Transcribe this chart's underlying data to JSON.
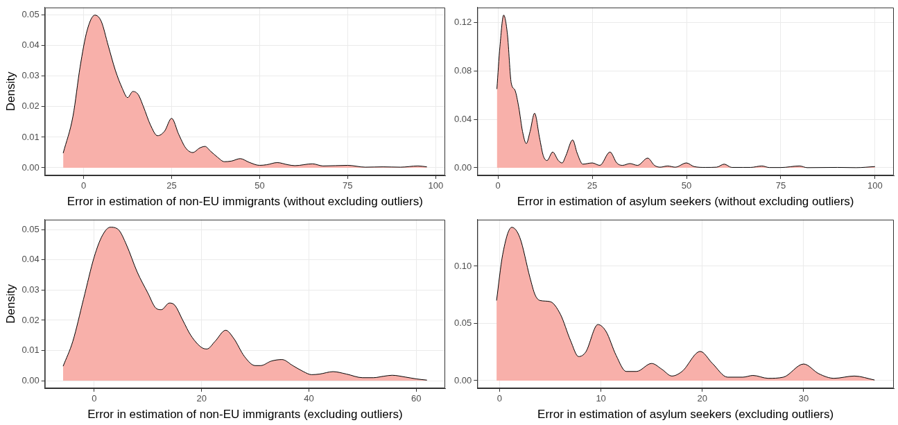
{
  "chart_data": [
    {
      "type": "area",
      "xlabel": "Error in estimation of non-EU immigrants (without excluding outliers)",
      "ylabel": "Density",
      "grid": true,
      "xlim": [
        -11,
        102.7
      ],
      "ylim": [
        -0.0025,
        0.0525
      ],
      "xticks": [
        0,
        25,
        50,
        75,
        100
      ],
      "yticks": [
        {
          "value": 0,
          "label": "0.00"
        },
        {
          "value": 0.01,
          "label": "0.01"
        },
        {
          "value": 0.02,
          "label": "0.02"
        },
        {
          "value": 0.03,
          "label": "0.03"
        },
        {
          "value": 0.04,
          "label": "0.04"
        },
        {
          "value": 0.05,
          "label": "0.05"
        }
      ],
      "x": [
        -5.8,
        -3,
        -1,
        1,
        3.2,
        5,
        7,
        9,
        11,
        12.5,
        14,
        15.5,
        17,
        19,
        21,
        23,
        25,
        27,
        29,
        31,
        33,
        34.5,
        36,
        38,
        40,
        42,
        44.5,
        47,
        50,
        52,
        55,
        58,
        60,
        65,
        68,
        75,
        80,
        85,
        90,
        95,
        97.5
      ],
      "series": [
        {
          "color": "#f8b0aa",
          "values": [
            0.0048,
            0.017,
            0.033,
            0.045,
            0.05,
            0.048,
            0.04,
            0.032,
            0.026,
            0.023,
            0.025,
            0.024,
            0.02,
            0.014,
            0.0105,
            0.012,
            0.0162,
            0.011,
            0.0065,
            0.005,
            0.0065,
            0.007,
            0.0055,
            0.0035,
            0.002,
            0.0022,
            0.003,
            0.0018,
            0.0008,
            0.001,
            0.0017,
            0.001,
            0.0007,
            0.0013,
            0.0006,
            0.0008,
            0.0002,
            0.0003,
            0.0002,
            0.0006,
            0.0003
          ]
        }
      ]
    },
    {
      "type": "area",
      "xlabel": "Error in estimation of asylum seekers (without excluding outliers)",
      "grid": true,
      "xlim": [
        -5.5,
        105
      ],
      "ylim": [
        -0.0063,
        0.1323
      ],
      "xticks": [
        0,
        25,
        50,
        75,
        100
      ],
      "yticks": [
        {
          "value": 0,
          "label": "0.00"
        },
        {
          "value": 0.04,
          "label": "0.04"
        },
        {
          "value": 0.08,
          "label": "0.08"
        },
        {
          "value": 0.12,
          "label": "0.12"
        }
      ],
      "x": [
        -0.3,
        0.5,
        1.5,
        2.5,
        3.5,
        4.5,
        5.5,
        6.5,
        7.5,
        8.5,
        9.7,
        11,
        12,
        13,
        14.5,
        16,
        17,
        18,
        19.8,
        21,
        22.5,
        25,
        27,
        29.7,
        31.5,
        33,
        35,
        37,
        39.7,
        41.5,
        43,
        45,
        47,
        50,
        52,
        55,
        58,
        60,
        62,
        65,
        67,
        70,
        72,
        75,
        80,
        82,
        90,
        95,
        100
      ],
      "series": [
        {
          "color": "#f8b0aa",
          "values": [
            0.065,
            0.1,
            0.126,
            0.11,
            0.07,
            0.064,
            0.05,
            0.03,
            0.02,
            0.03,
            0.045,
            0.025,
            0.01,
            0.006,
            0.013,
            0.006,
            0.004,
            0.01,
            0.023,
            0.012,
            0.003,
            0.004,
            0.002,
            0.013,
            0.004,
            0.002,
            0.0035,
            0.002,
            0.008,
            0.002,
            0.0005,
            0.0015,
            0.0005,
            0.004,
            0.001,
            0.0003,
            0.0005,
            0.003,
            0.0003,
            0.0003,
            0.0003,
            0.0015,
            0.0002,
            0.0002,
            0.0015,
            0.0001,
            0.0003,
            0.0001,
            0.001
          ]
        }
      ]
    },
    {
      "type": "area",
      "xlabel": "Error in estimation of non-EU immigrants (excluding outliers)",
      "ylabel": "Density",
      "grid": true,
      "xlim": [
        -9.2,
        65.4
      ],
      "ylim": [
        -0.0025,
        0.0533
      ],
      "xticks": [
        0,
        20,
        40,
        60
      ],
      "yticks": [
        {
          "value": 0,
          "label": "0.00"
        },
        {
          "value": 0.01,
          "label": "0.01"
        },
        {
          "value": 0.02,
          "label": "0.02"
        },
        {
          "value": 0.03,
          "label": "0.03"
        },
        {
          "value": 0.04,
          "label": "0.04"
        },
        {
          "value": 0.05,
          "label": "0.05"
        }
      ],
      "x": [
        -5.8,
        -4,
        -2,
        0,
        1.5,
        3,
        4.5,
        6,
        8,
        10,
        11.5,
        12.5,
        14,
        15,
        16.5,
        18,
        20,
        21,
        22.5,
        24.5,
        26,
        28,
        30,
        31,
        33,
        35,
        37,
        39,
        40.5,
        42,
        44.5,
        47,
        50,
        52,
        54,
        55.5,
        58,
        60,
        62
      ],
      "series": [
        {
          "color": "#f8b0aa",
          "values": [
            0.0048,
            0.013,
            0.027,
            0.041,
            0.048,
            0.0508,
            0.05,
            0.045,
            0.036,
            0.029,
            0.024,
            0.0235,
            0.0257,
            0.025,
            0.02,
            0.015,
            0.011,
            0.0105,
            0.013,
            0.0167,
            0.014,
            0.008,
            0.005,
            0.005,
            0.0065,
            0.007,
            0.005,
            0.003,
            0.002,
            0.0022,
            0.003,
            0.0022,
            0.001,
            0.001,
            0.0015,
            0.0018,
            0.0012,
            0.0006,
            0.0002
          ]
        }
      ]
    },
    {
      "type": "area",
      "xlabel": "Error in estimation of asylum seekers (excluding outliers)",
      "grid": true,
      "xlim": [
        -2.2,
        38.9
      ],
      "ylim": [
        -0.0067,
        0.1407
      ],
      "xticks": [
        0,
        10,
        20,
        30
      ],
      "yticks": [
        {
          "value": 0,
          "label": "0.00"
        },
        {
          "value": 0.05,
          "label": "0.05"
        },
        {
          "value": 0.1,
          "label": "0.10"
        }
      ],
      "x": [
        -0.3,
        0.3,
        1.2,
        2,
        3,
        3.5,
        4,
        5,
        6,
        7,
        7.8,
        8.5,
        9.7,
        10.5,
        11.5,
        12.5,
        13.5,
        15,
        16,
        17,
        18,
        19.8,
        21,
        22.5,
        24,
        25,
        26.5,
        28,
        30,
        31.5,
        33,
        35,
        37
      ],
      "series": [
        {
          "color": "#f8b0aa",
          "values": [
            0.07,
            0.11,
            0.134,
            0.125,
            0.09,
            0.075,
            0.07,
            0.069,
            0.058,
            0.035,
            0.021,
            0.025,
            0.049,
            0.043,
            0.022,
            0.008,
            0.008,
            0.015,
            0.01,
            0.004,
            0.008,
            0.0255,
            0.015,
            0.003,
            0.003,
            0.0045,
            0.002,
            0.003,
            0.0145,
            0.006,
            0.002,
            0.004,
            0.0005
          ]
        }
      ]
    }
  ]
}
